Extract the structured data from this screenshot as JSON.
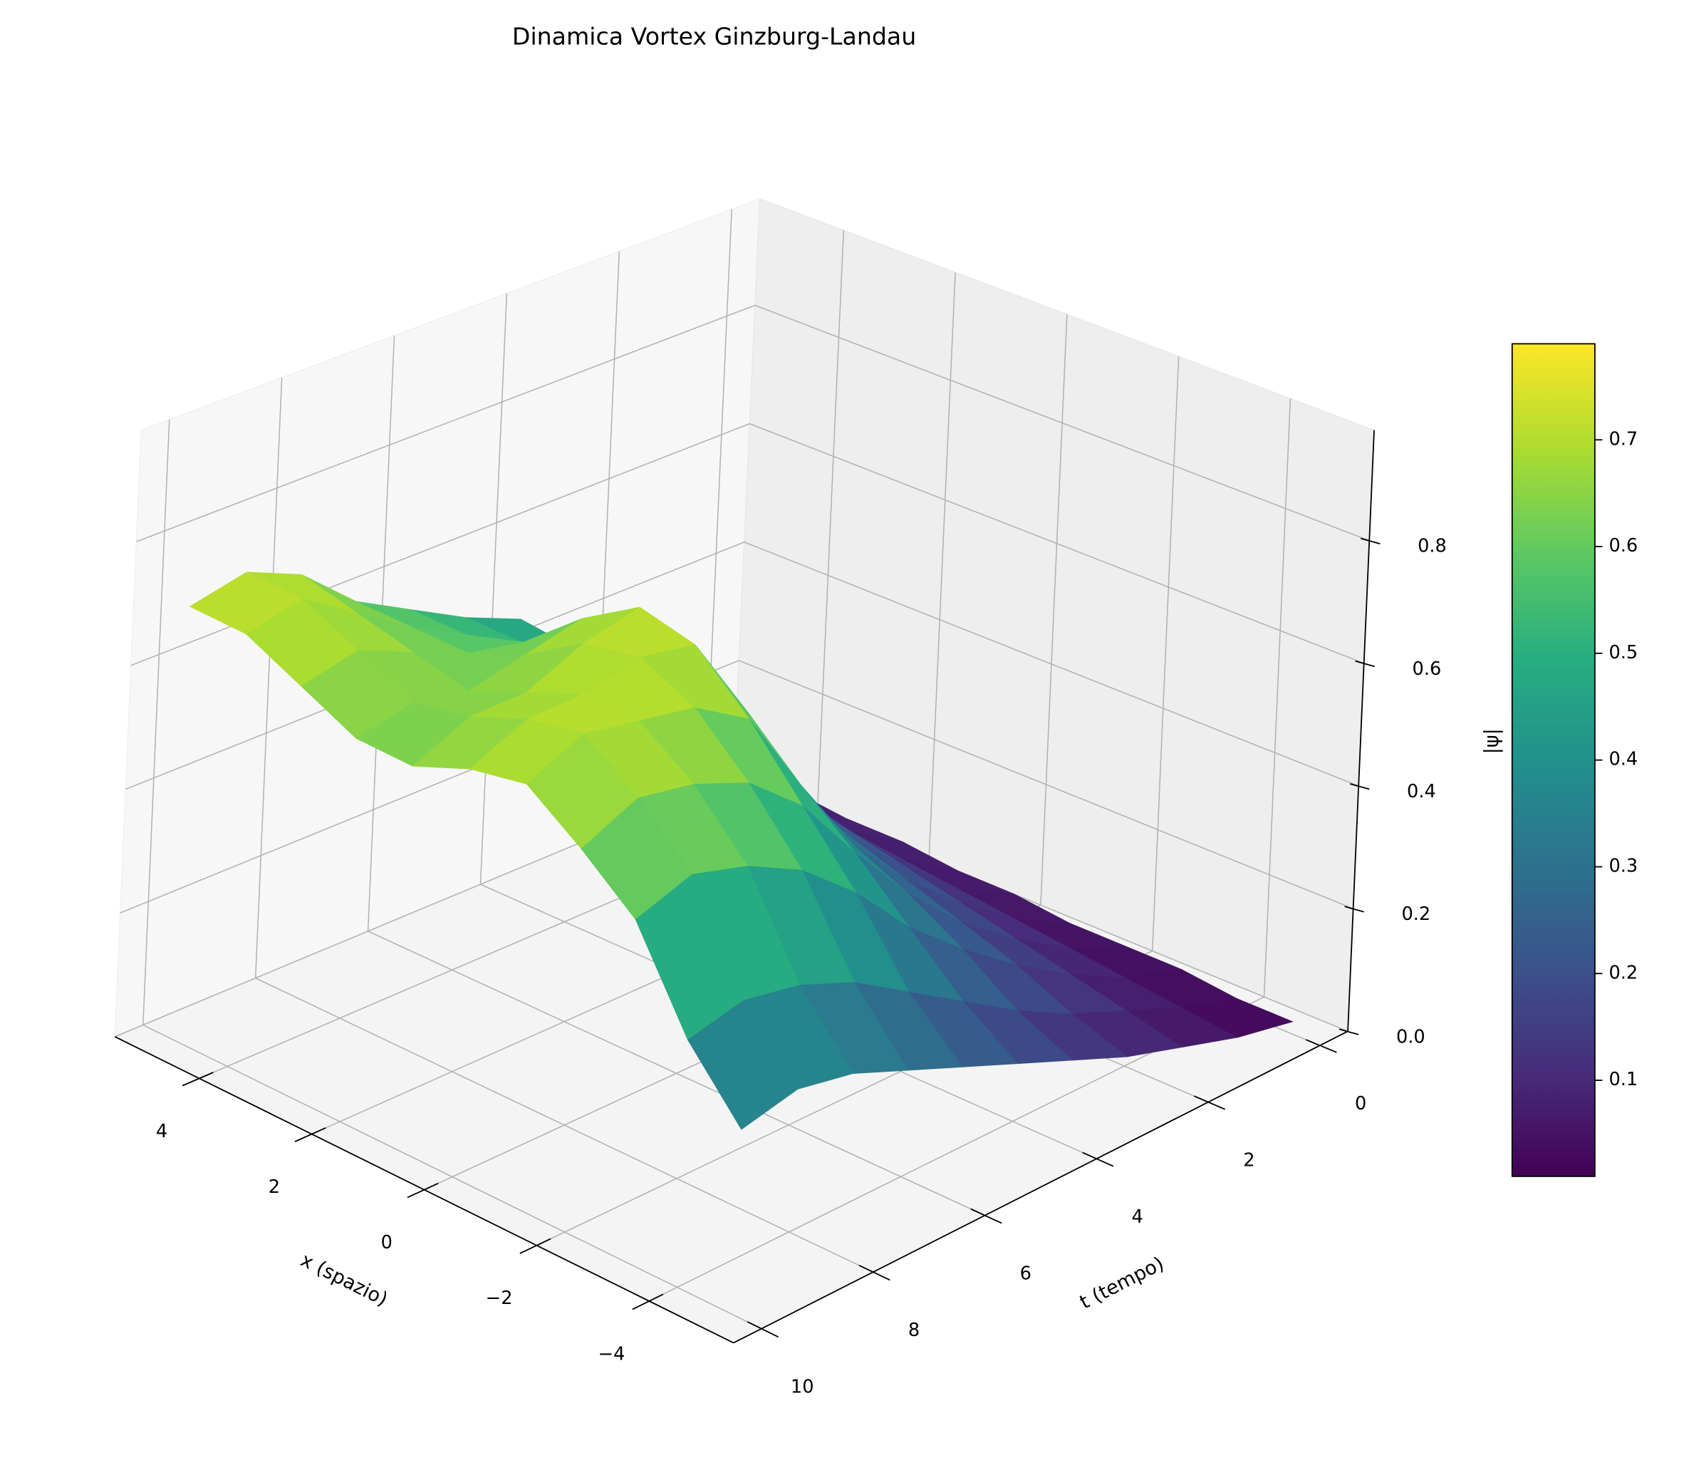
{
  "chart_data": {
    "type": "surface3d",
    "title": "Dinamica Vortex Ginzburg-Landau",
    "x_label": "x (spazio)",
    "y_label": "t (tempo)",
    "colorbar_label": "|ψ|",
    "x": [
      -5,
      -4,
      -3,
      -2,
      -1,
      0,
      1,
      2,
      3,
      4,
      5
    ],
    "y": [
      0,
      1,
      2,
      3,
      4,
      5,
      6,
      7,
      8,
      9,
      10
    ],
    "z": [
      [
        0.02,
        0.02,
        0.03,
        0.03,
        0.03,
        0.04,
        0.04,
        0.05,
        0.05,
        0.06,
        0.06
      ],
      [
        0.04,
        0.05,
        0.06,
        0.07,
        0.08,
        0.09,
        0.1,
        0.11,
        0.12,
        0.13,
        0.14
      ],
      [
        0.07,
        0.09,
        0.11,
        0.13,
        0.15,
        0.17,
        0.19,
        0.21,
        0.23,
        0.25,
        0.27
      ],
      [
        0.1,
        0.13,
        0.17,
        0.2,
        0.23,
        0.26,
        0.29,
        0.31,
        0.33,
        0.35,
        0.37
      ],
      [
        0.14,
        0.18,
        0.24,
        0.29,
        0.33,
        0.37,
        0.4,
        0.42,
        0.44,
        0.45,
        0.46
      ],
      [
        0.18,
        0.24,
        0.32,
        0.4,
        0.47,
        0.55,
        0.6,
        0.58,
        0.52,
        0.5,
        0.5
      ],
      [
        0.22,
        0.3,
        0.42,
        0.52,
        0.62,
        0.7,
        0.72,
        0.66,
        0.58,
        0.55,
        0.55
      ],
      [
        0.26,
        0.36,
        0.5,
        0.6,
        0.68,
        0.72,
        0.7,
        0.64,
        0.6,
        0.6,
        0.6
      ],
      [
        0.3,
        0.4,
        0.55,
        0.64,
        0.7,
        0.7,
        0.66,
        0.62,
        0.64,
        0.66,
        0.68
      ],
      [
        0.32,
        0.42,
        0.58,
        0.66,
        0.72,
        0.7,
        0.66,
        0.64,
        0.68,
        0.72,
        0.72
      ],
      [
        0.3,
        0.4,
        0.55,
        0.62,
        0.68,
        0.66,
        0.62,
        0.62,
        0.66,
        0.7,
        0.7
      ]
    ],
    "xlim": [
      -5.5,
      5.5
    ],
    "ylim": [
      -0.5,
      10.5
    ],
    "zlim": [
      0,
      0.98
    ],
    "xticks": [
      {
        "value": -4,
        "label": "−4"
      },
      {
        "value": -2,
        "label": "−2"
      },
      0,
      2,
      4
    ],
    "yticks": [
      0,
      2,
      4,
      6,
      8,
      10
    ],
    "zticks": [
      {
        "value": 0,
        "label": "0.0"
      },
      0.2,
      0.4,
      0.6,
      0.8
    ],
    "colormap": "viridis",
    "clim": [
      0.01,
      0.79
    ],
    "colorbar_ticks": [
      0.1,
      0.2,
      0.3,
      0.4,
      0.5,
      0.6,
      0.7
    ],
    "grid": true
  }
}
